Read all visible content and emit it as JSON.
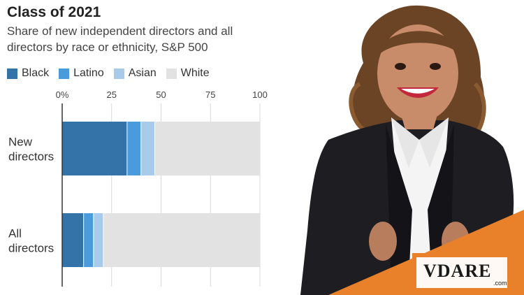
{
  "chart_data": {
    "type": "bar",
    "orientation": "horizontal",
    "stacked": true,
    "title": "Class of 2021",
    "subtitle": "Share of new independent directors and all directors by race or ethnicity, S&P 500",
    "categories": [
      "New directors",
      "All directors"
    ],
    "series": [
      {
        "name": "Black",
        "color": "#3473a8",
        "values": [
          33,
          11
        ]
      },
      {
        "name": "Latino",
        "color": "#4a9bdb",
        "values": [
          7,
          5
        ]
      },
      {
        "name": "Asian",
        "color": "#a8cbec",
        "values": [
          7,
          5
        ]
      },
      {
        "name": "White",
        "color": "#e2e2e2",
        "values": [
          53,
          79
        ]
      }
    ],
    "xlim": [
      0,
      100
    ],
    "xticks": [
      "0%",
      "25",
      "50",
      "75",
      "100"
    ],
    "xtick_values": [
      0,
      25,
      50,
      75,
      100
    ],
    "grid": true,
    "legend_position": "top-left"
  },
  "logo": {
    "text": "VDARE",
    "sub": ".com",
    "color": "#e8812a"
  },
  "photo": {
    "subject": "smiling woman in black blazer"
  }
}
